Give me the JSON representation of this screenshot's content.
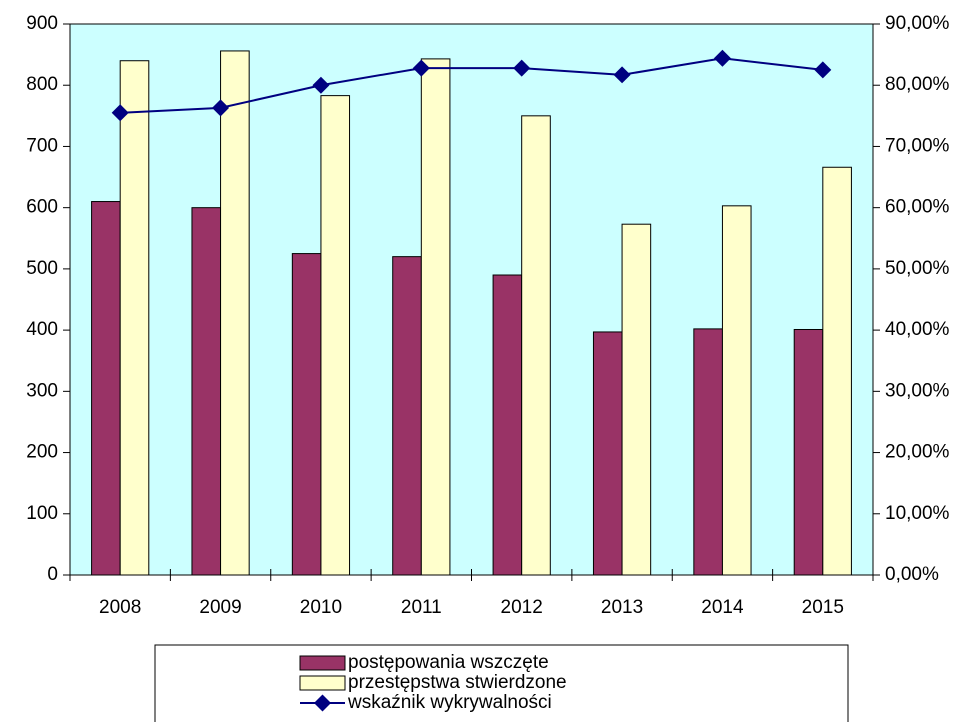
{
  "chart_data": {
    "type": "bar",
    "categories": [
      "2008",
      "2009",
      "2010",
      "2011",
      "2012",
      "2013",
      "2014",
      "2015"
    ],
    "series": [
      {
        "name": "postępowania wszczęte",
        "color": "#993366",
        "values": [
          610,
          600,
          525,
          520,
          490,
          397,
          402,
          401
        ]
      },
      {
        "name": "przestępstwa stwierdzone",
        "color": "#ffffcc",
        "values": [
          840,
          856,
          783,
          843,
          750,
          573,
          603,
          666
        ]
      },
      {
        "name": "wskaźnik wykrywalności",
        "type": "line",
        "axis": "y2",
        "color": "#000080",
        "values": [
          75.5,
          76.3,
          80.0,
          82.8,
          82.8,
          81.7,
          84.4,
          82.5
        ]
      }
    ],
    "ylim": [
      0,
      900
    ],
    "yticks": [
      0,
      100,
      200,
      300,
      400,
      500,
      600,
      700,
      800,
      900
    ],
    "y2lim": [
      0,
      90
    ],
    "y2ticks": [
      {
        "value": 0,
        "label": "0,00%"
      },
      {
        "value": 10,
        "label": "10,00%"
      },
      {
        "value": 20,
        "label": "20,00%"
      },
      {
        "value": 30,
        "label": "30,00%"
      },
      {
        "value": 40,
        "label": "40,00%"
      },
      {
        "value": 50,
        "label": "50,00%"
      },
      {
        "value": 60,
        "label": "60,00%"
      },
      {
        "value": 70,
        "label": "70,00%"
      },
      {
        "value": 80,
        "label": "80,00%"
      },
      {
        "value": 90,
        "label": "90,00%"
      }
    ],
    "plot_background": "#ccffff",
    "legend": "bottom"
  }
}
